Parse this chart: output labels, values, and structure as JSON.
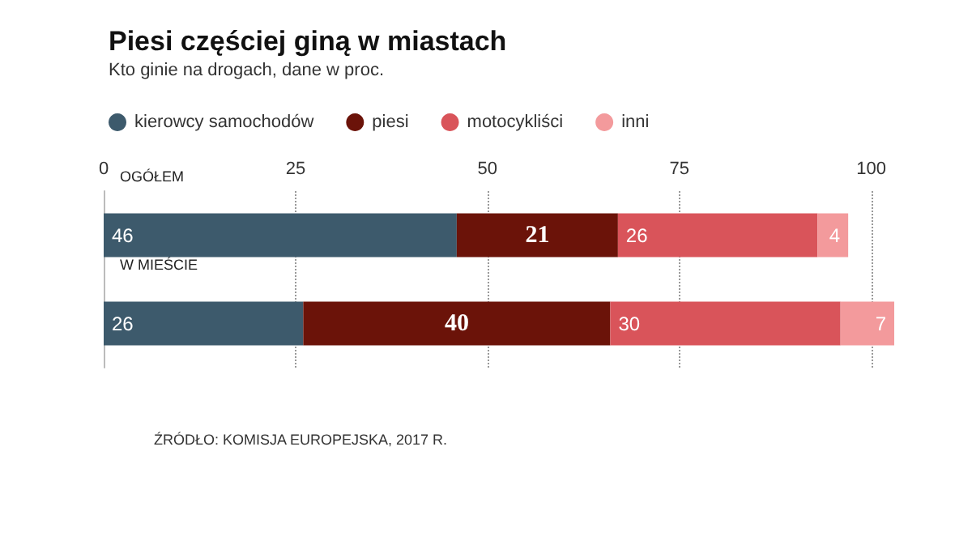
{
  "chart_data": {
    "type": "bar",
    "orientation": "horizontal",
    "stacked": true,
    "title": "Piesi częściej giną w miastach",
    "subtitle": "Kto ginie na drogach, dane w proc.",
    "annotations": [
      "ŹRÓDŁO: KOMISJA EUROPEJSKA, 2017 R."
    ],
    "categories": [
      "OGÓŁEM",
      "W MIEŚCIE"
    ],
    "series": [
      {
        "name": "kierowcy samochodów",
        "color": "#3d5a6c",
        "values": [
          46,
          26
        ]
      },
      {
        "name": "piesi",
        "color": "#6b1309",
        "values": [
          21,
          40
        ]
      },
      {
        "name": "motocykliści",
        "color": "#d9545a",
        "values": [
          26,
          30
        ]
      },
      {
        "name": "inni",
        "color": "#f39a9c",
        "values": [
          4,
          7
        ]
      }
    ],
    "xlim": [
      0,
      103
    ],
    "xticks": [
      0,
      25,
      50,
      75,
      100
    ],
    "grid": "x",
    "legend": "top left",
    "data_labels": true
  }
}
